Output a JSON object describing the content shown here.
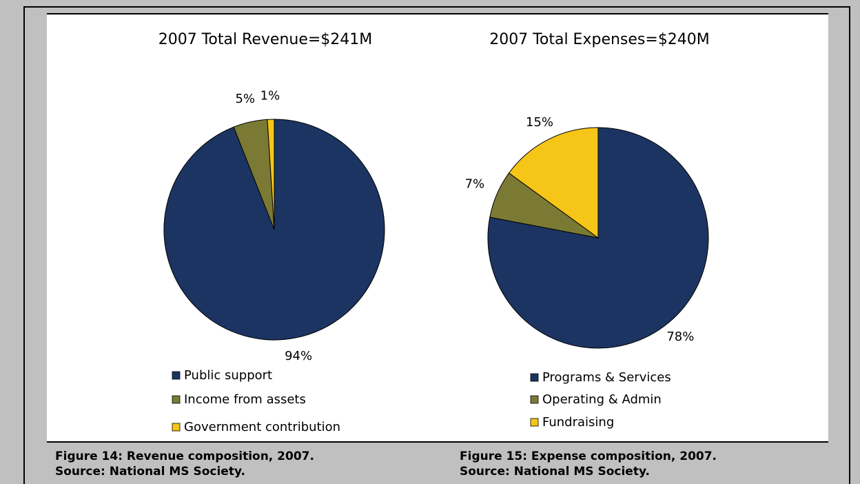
{
  "chart_data": [
    {
      "type": "pie",
      "title": "2007 Total Revenue=$241M",
      "categories": [
        "Public support",
        "Income from assets",
        "Government contribution"
      ],
      "values": [
        94,
        5,
        1
      ],
      "value_labels": [
        "94%",
        "5%",
        "1%"
      ],
      "colors": [
        "#1c3461",
        "#7b7a35",
        "#f5c518"
      ]
    },
    {
      "type": "pie",
      "title": "2007 Total Expenses=$240M",
      "categories": [
        "Programs & Services",
        "Operating & Admin",
        "Fundraising"
      ],
      "values": [
        78,
        7,
        15
      ],
      "value_labels": [
        "78%",
        "7%",
        "15%"
      ],
      "colors": [
        "#1c3461",
        "#7b7a35",
        "#f5c518"
      ]
    }
  ],
  "captions": [
    {
      "line1": "Figure 14: Revenue composition, 2007.",
      "line2": "Source: National MS Society."
    },
    {
      "line1": "Figure 15: Expense composition, 2007.",
      "line2": "Source: National MS Society."
    }
  ]
}
